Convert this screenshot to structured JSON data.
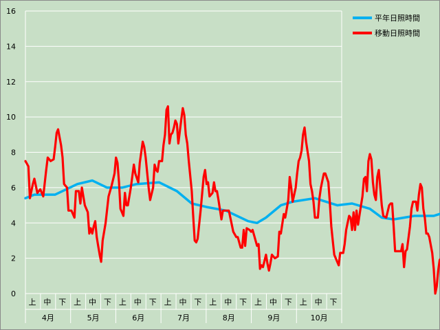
{
  "chart_data": {
    "type": "line",
    "ylim": [
      0,
      16
    ],
    "yticks": [
      0,
      2,
      4,
      6,
      8,
      10,
      12,
      14,
      16
    ],
    "grid": true,
    "legend_position": "top-right",
    "months": [
      "4月",
      "5月",
      "6月",
      "7月",
      "8月",
      "9月",
      "10月"
    ],
    "sub_periods": [
      "上",
      "中",
      "下"
    ],
    "x_count": 213,
    "series": [
      {
        "name": "平年日照時間",
        "color": "#00b0f0",
        "points": [
          [
            0,
            5.4
          ],
          [
            6,
            5.6
          ],
          [
            20,
            5.6
          ],
          [
            35,
            6.2
          ],
          [
            45,
            6.4
          ],
          [
            55,
            6.0
          ],
          [
            65,
            6.0
          ],
          [
            75,
            6.2
          ],
          [
            90,
            6.3
          ],
          [
            102,
            5.8
          ],
          [
            112,
            5.1
          ],
          [
            122,
            4.9
          ],
          [
            135,
            4.7
          ],
          [
            150,
            4.1
          ],
          [
            156,
            4.0
          ],
          [
            162,
            4.3
          ],
          [
            172,
            5.0
          ],
          [
            180,
            5.2
          ],
          [
            195,
            5.4
          ],
          [
            210,
            5.0
          ],
          [
            220,
            5.1
          ],
          [
            232,
            4.8
          ],
          [
            240,
            4.3
          ],
          [
            248,
            4.2
          ],
          [
            262,
            4.4
          ],
          [
            275,
            4.4
          ],
          [
            290,
            4.8
          ],
          [
            310,
            4.7
          ],
          [
            316,
            4.6
          ],
          [
            319,
            4.6
          ]
        ]
      },
      {
        "name": "移動日照時間",
        "color": "#ff0000",
        "points": [
          [
            0,
            7.5
          ],
          [
            2,
            7.2
          ],
          [
            3,
            5.4
          ],
          [
            5,
            6.2
          ],
          [
            6,
            6.5
          ],
          [
            8,
            5.7
          ],
          [
            10,
            5.9
          ],
          [
            12,
            5.5
          ],
          [
            14,
            7.0
          ],
          [
            15,
            7.7
          ],
          [
            17,
            7.5
          ],
          [
            19,
            7.6
          ],
          [
            20,
            8.3
          ],
          [
            21,
            9.1
          ],
          [
            22,
            9.3
          ],
          [
            24,
            8.4
          ],
          [
            25,
            7.7
          ],
          [
            26,
            6.2
          ],
          [
            28,
            6.0
          ],
          [
            29,
            4.7
          ],
          [
            31,
            4.7
          ],
          [
            33,
            4.3
          ],
          [
            34,
            5.8
          ],
          [
            36,
            5.8
          ],
          [
            37,
            5.1
          ],
          [
            38,
            6.0
          ],
          [
            40,
            5.0
          ],
          [
            42,
            4.6
          ],
          [
            43,
            3.4
          ],
          [
            44,
            3.7
          ],
          [
            45,
            3.4
          ],
          [
            46,
            3.8
          ],
          [
            47,
            4.1
          ],
          [
            48,
            3.2
          ],
          [
            49,
            2.7
          ],
          [
            50,
            2.2
          ],
          [
            51,
            1.8
          ],
          [
            52,
            3.0
          ],
          [
            54,
            4.0
          ],
          [
            56,
            5.5
          ],
          [
            58,
            6.1
          ],
          [
            60,
            6.8
          ],
          [
            61,
            7.7
          ],
          [
            62,
            7.4
          ],
          [
            63,
            6.3
          ],
          [
            64,
            4.8
          ],
          [
            65,
            4.6
          ],
          [
            66,
            4.4
          ],
          [
            67,
            5.7
          ],
          [
            68,
            5.0
          ],
          [
            69,
            5.0
          ],
          [
            71,
            6.0
          ],
          [
            73,
            7.3
          ],
          [
            74,
            6.8
          ],
          [
            76,
            6.3
          ],
          [
            77,
            7.4
          ],
          [
            79,
            8.6
          ],
          [
            80,
            8.3
          ],
          [
            81,
            7.7
          ],
          [
            83,
            6.0
          ],
          [
            84,
            5.3
          ],
          [
            86,
            6.0
          ],
          [
            87,
            7.3
          ],
          [
            88,
            7.0
          ],
          [
            89,
            6.9
          ],
          [
            90,
            7.5
          ],
          [
            92,
            7.5
          ],
          [
            93,
            8.4
          ],
          [
            94,
            9.0
          ],
          [
            95,
            10.4
          ],
          [
            96,
            10.6
          ],
          [
            97,
            8.5
          ],
          [
            98,
            9.0
          ],
          [
            99,
            9.1
          ],
          [
            100,
            9.4
          ],
          [
            101,
            9.8
          ],
          [
            102,
            9.6
          ],
          [
            103,
            8.5
          ],
          [
            105,
            9.9
          ],
          [
            106,
            10.5
          ],
          [
            107,
            10.1
          ],
          [
            108,
            9.0
          ],
          [
            109,
            8.5
          ],
          [
            110,
            7.5
          ],
          [
            112,
            5.8
          ],
          [
            113,
            4.4
          ],
          [
            114,
            3.0
          ],
          [
            115,
            2.9
          ],
          [
            116,
            3.1
          ],
          [
            118,
            4.7
          ],
          [
            120,
            6.6
          ],
          [
            121,
            7.0
          ],
          [
            122,
            6.2
          ],
          [
            123,
            6.3
          ],
          [
            124,
            5.5
          ],
          [
            126,
            5.7
          ],
          [
            127,
            6.3
          ],
          [
            128,
            5.8
          ],
          [
            129,
            5.8
          ],
          [
            130,
            5.3
          ],
          [
            132,
            4.2
          ],
          [
            133,
            4.7
          ],
          [
            135,
            4.7
          ],
          [
            137,
            4.7
          ],
          [
            140,
            3.5
          ],
          [
            142,
            3.2
          ],
          [
            143,
            3.2
          ],
          [
            145,
            2.6
          ],
          [
            146,
            2.6
          ],
          [
            147,
            3.6
          ],
          [
            148,
            2.7
          ],
          [
            149,
            3.7
          ],
          [
            151,
            3.6
          ],
          [
            152,
            3.5
          ],
          [
            153,
            3.6
          ],
          [
            154,
            3.3
          ],
          [
            156,
            2.7
          ],
          [
            157,
            2.8
          ],
          [
            158,
            1.4
          ],
          [
            159,
            1.6
          ],
          [
            160,
            1.5
          ],
          [
            162,
            2.2
          ],
          [
            163,
            1.7
          ],
          [
            164,
            1.3
          ],
          [
            165,
            1.7
          ],
          [
            166,
            2.2
          ],
          [
            168,
            2.0
          ],
          [
            170,
            2.1
          ],
          [
            171,
            3.5
          ],
          [
            172,
            3.4
          ],
          [
            174,
            4.5
          ],
          [
            175,
            4.3
          ],
          [
            176,
            4.8
          ],
          [
            177,
            5.3
          ],
          [
            178,
            6.6
          ],
          [
            179,
            6.0
          ],
          [
            180,
            5.2
          ],
          [
            182,
            6.0
          ],
          [
            183,
            6.8
          ],
          [
            184,
            7.5
          ],
          [
            185,
            7.7
          ],
          [
            186,
            8.1
          ],
          [
            187,
            9.0
          ],
          [
            188,
            9.4
          ],
          [
            189,
            8.6
          ],
          [
            191,
            7.5
          ],
          [
            192,
            6.2
          ],
          [
            193,
            5.8
          ],
          [
            194,
            5.2
          ],
          [
            195,
            4.3
          ],
          [
            197,
            4.3
          ],
          [
            198,
            5.4
          ],
          [
            199,
            6.0
          ],
          [
            200,
            6.4
          ],
          [
            201,
            6.8
          ],
          [
            202,
            6.8
          ],
          [
            204,
            6.3
          ],
          [
            205,
            5.2
          ],
          [
            206,
            3.8
          ],
          [
            207,
            3.0
          ],
          [
            208,
            2.2
          ],
          [
            210,
            1.8
          ],
          [
            211,
            1.6
          ],
          [
            212,
            2.3
          ],
          [
            213,
            2.3
          ],
          [
            214,
            2.3
          ],
          [
            215,
            2.8
          ],
          [
            216,
            3.6
          ],
          [
            217,
            4.0
          ],
          [
            218,
            4.4
          ],
          [
            219,
            4.3
          ],
          [
            220,
            3.6
          ],
          [
            221,
            4.6
          ],
          [
            222,
            3.6
          ],
          [
            223,
            4.7
          ],
          [
            224,
            3.9
          ],
          [
            226,
            5.0
          ],
          [
            227,
            5.5
          ],
          [
            228,
            6.5
          ],
          [
            229,
            6.6
          ],
          [
            230,
            5.8
          ],
          [
            231,
            7.5
          ],
          [
            232,
            7.9
          ],
          [
            233,
            7.6
          ],
          [
            234,
            6.3
          ],
          [
            235,
            5.6
          ],
          [
            236,
            5.3
          ],
          [
            237,
            6.6
          ],
          [
            238,
            7.0
          ],
          [
            240,
            5.0
          ],
          [
            241,
            4.4
          ],
          [
            243,
            4.3
          ],
          [
            245,
            5.0
          ],
          [
            246,
            5.1
          ],
          [
            247,
            5.1
          ],
          [
            248,
            3.8
          ],
          [
            249,
            2.4
          ],
          [
            253,
            2.4
          ],
          [
            254,
            2.8
          ],
          [
            255,
            1.5
          ],
          [
            256,
            2.4
          ],
          [
            257,
            2.5
          ],
          [
            259,
            3.8
          ],
          [
            260,
            4.8
          ],
          [
            261,
            5.2
          ],
          [
            263,
            5.2
          ],
          [
            264,
            4.7
          ],
          [
            265,
            5.6
          ],
          [
            266,
            6.2
          ],
          [
            267,
            6.0
          ],
          [
            268,
            4.8
          ],
          [
            269,
            4.3
          ],
          [
            270,
            3.4
          ],
          [
            271,
            3.4
          ],
          [
            272,
            3.2
          ],
          [
            274,
            2.3
          ],
          [
            275,
            1.4
          ],
          [
            276,
            0.0
          ],
          [
            277,
            0.4
          ],
          [
            278,
            1.3
          ],
          [
            279,
            1.9
          ],
          [
            280,
            2.0
          ],
          [
            281,
            2.1
          ],
          [
            282,
            2.4
          ],
          [
            283,
            3.0
          ]
        ]
      }
    ]
  }
}
